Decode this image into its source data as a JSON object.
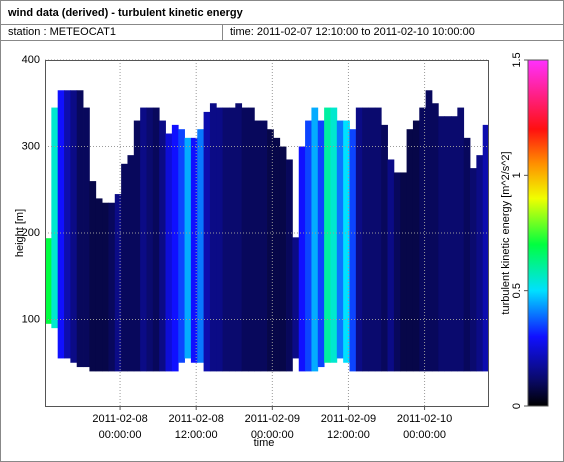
{
  "chart_data": {
    "type": "heatmap",
    "title": "wind data (derived) - turbulent kinetic energy",
    "station_label": "station : METEOCAT1",
    "time_label": "time: 2011-02-07 12:10:00 to 2011-02-10 10:00:00",
    "xlabel": "time",
    "ylabel": "height [m]",
    "colorbar_label": "turbulent kinetic energy [m^2/s^2]",
    "xlim": [
      "2011-02-07 12:10:00",
      "2011-02-10 10:00:00"
    ],
    "xticks": [
      "2011-02-08 00:00:00",
      "2011-02-08 12:00:00",
      "2011-02-09 00:00:00",
      "2011-02-09 12:00:00",
      "2011-02-10 00:00:00"
    ],
    "ylim": [
      0,
      400
    ],
    "yticks": [
      100,
      200,
      300,
      400
    ],
    "clim": [
      0,
      1.5
    ],
    "cticks": [
      0,
      0.5,
      1,
      1.5
    ],
    "grid": true,
    "colorscale": [
      [
        0,
        "#000000"
      ],
      [
        0.12,
        "#0a0a6e"
      ],
      [
        0.3,
        "#1010ff"
      ],
      [
        0.5,
        "#00e0ff"
      ],
      [
        0.7,
        "#00ff40"
      ],
      [
        0.9,
        "#f0ff00"
      ],
      [
        1.05,
        "#ff9000"
      ],
      [
        1.2,
        "#ff1010"
      ],
      [
        1.5,
        "#ff30ff"
      ]
    ],
    "x": [
      "2011-02-07 12:10:00",
      "2011-02-07 13:10:00",
      "2011-02-07 14:10:00",
      "2011-02-07 15:10:00",
      "2011-02-07 16:10:00",
      "2011-02-07 17:10:00",
      "2011-02-07 18:10:00",
      "2011-02-07 19:10:00",
      "2011-02-07 20:10:00",
      "2011-02-07 21:10:00",
      "2011-02-07 22:10:00",
      "2011-02-07 23:10:00",
      "2011-02-08 00:10:00",
      "2011-02-08 01:10:00",
      "2011-02-08 02:10:00",
      "2011-02-08 03:10:00",
      "2011-02-08 04:10:00",
      "2011-02-08 05:10:00",
      "2011-02-08 06:10:00",
      "2011-02-08 07:10:00",
      "2011-02-08 08:10:00",
      "2011-02-08 09:10:00",
      "2011-02-08 10:10:00",
      "2011-02-08 11:10:00",
      "2011-02-08 12:10:00",
      "2011-02-08 13:10:00",
      "2011-02-08 14:10:00",
      "2011-02-08 15:10:00",
      "2011-02-08 16:10:00",
      "2011-02-08 17:10:00",
      "2011-02-08 18:10:00",
      "2011-02-08 19:10:00",
      "2011-02-08 20:10:00",
      "2011-02-08 21:10:00",
      "2011-02-08 22:10:00",
      "2011-02-08 23:10:00",
      "2011-02-09 00:10:00",
      "2011-02-09 01:10:00",
      "2011-02-09 02:10:00",
      "2011-02-09 03:10:00",
      "2011-02-09 04:10:00",
      "2011-02-09 05:10:00",
      "2011-02-09 06:10:00",
      "2011-02-09 07:10:00",
      "2011-02-09 08:10:00",
      "2011-02-09 09:10:00",
      "2011-02-09 10:10:00",
      "2011-02-09 11:10:00",
      "2011-02-09 12:10:00",
      "2011-02-09 13:10:00",
      "2011-02-09 14:10:00",
      "2011-02-09 15:10:00",
      "2011-02-09 16:10:00",
      "2011-02-09 17:10:00",
      "2011-02-09 18:10:00",
      "2011-02-09 19:10:00",
      "2011-02-09 20:10:00",
      "2011-02-09 21:10:00",
      "2011-02-09 22:10:00",
      "2011-02-09 23:10:00",
      "2011-02-10 00:10:00",
      "2011-02-10 01:10:00",
      "2011-02-10 02:10:00",
      "2011-02-10 03:10:00",
      "2011-02-10 04:10:00",
      "2011-02-10 05:10:00",
      "2011-02-10 06:10:00",
      "2011-02-10 07:10:00",
      "2011-02-10 08:10:00",
      "2011-02-10 09:10:00"
    ],
    "top": [
      194,
      345,
      365,
      365,
      365,
      365,
      345,
      260,
      240,
      235,
      235,
      245,
      280,
      290,
      330,
      345,
      345,
      345,
      330,
      315,
      325,
      320,
      310,
      310,
      320,
      340,
      350,
      345,
      345,
      345,
      350,
      345,
      345,
      330,
      330,
      320,
      310,
      300,
      285,
      195,
      300,
      330,
      345,
      330,
      345,
      345,
      330,
      330,
      320,
      345,
      345,
      345,
      345,
      325,
      285,
      270,
      270,
      320,
      330,
      345,
      365,
      350,
      335,
      335,
      335,
      345,
      310,
      275,
      290,
      325
    ],
    "bottom": [
      95,
      90,
      55,
      55,
      50,
      45,
      45,
      40,
      40,
      40,
      40,
      40,
      40,
      40,
      40,
      40,
      40,
      40,
      40,
      40,
      40,
      50,
      55,
      50,
      50,
      40,
      40,
      40,
      40,
      40,
      40,
      40,
      40,
      40,
      40,
      40,
      40,
      40,
      40,
      55,
      40,
      40,
      40,
      45,
      50,
      50,
      55,
      50,
      40,
      40,
      40,
      40,
      40,
      40,
      40,
      40,
      40,
      40,
      40,
      40,
      40,
      40,
      40,
      40,
      40,
      40,
      40,
      40,
      40,
      40
    ],
    "values": [
      0.7,
      0.55,
      0.3,
      0.2,
      0.15,
      0.1,
      0.1,
      0.08,
      0.08,
      0.08,
      0.1,
      0.15,
      0.1,
      0.1,
      0.1,
      0.15,
      0.12,
      0.1,
      0.15,
      0.25,
      0.3,
      0.35,
      0.45,
      0.3,
      0.4,
      0.2,
      0.15,
      0.15,
      0.12,
      0.12,
      0.12,
      0.1,
      0.1,
      0.1,
      0.1,
      0.08,
      0.08,
      0.08,
      0.1,
      0.15,
      0.3,
      0.35,
      0.45,
      0.35,
      0.6,
      0.55,
      0.4,
      0.5,
      0.35,
      0.15,
      0.12,
      0.12,
      0.12,
      0.1,
      0.15,
      0.1,
      0.08,
      0.08,
      0.08,
      0.1,
      0.1,
      0.1,
      0.12,
      0.12,
      0.12,
      0.12,
      0.1,
      0.12,
      0.15,
      0.2
    ]
  }
}
